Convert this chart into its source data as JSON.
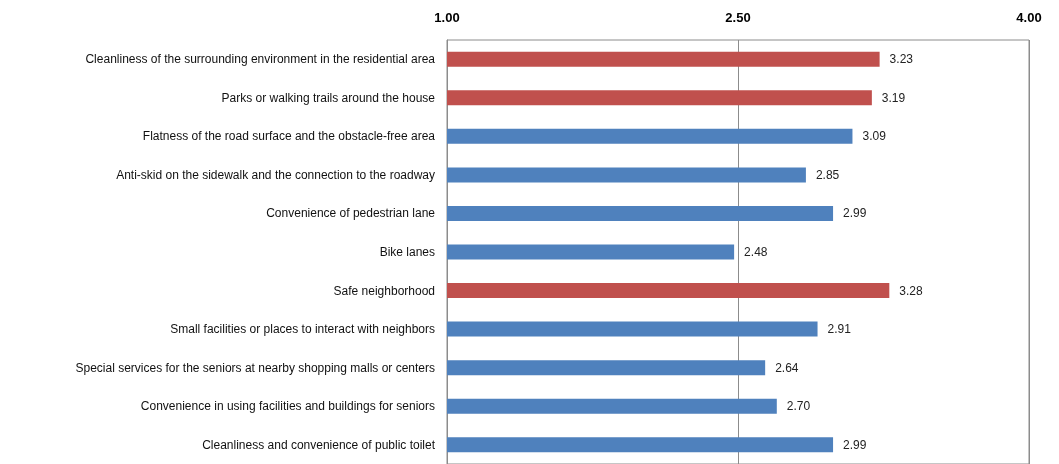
{
  "chart_data": {
    "type": "bar",
    "orientation": "horizontal",
    "categories": [
      "Cleanliness of the surrounding environment in the residential area",
      "Parks or walking trails around the house",
      "Flatness of the road surface and the obstacle-free area",
      "Anti-skid on the sidewalk and the connection to the roadway",
      "Convenience of pedestrian lane",
      "Bike lanes",
      "Safe neighborhood",
      "Small facilities or places to interact with neighbors",
      "Special services for the seniors at nearby shopping malls or centers",
      "Convenience in using facilities and buildings for seniors",
      "Cleanliness and convenience of public toilet"
    ],
    "values": [
      3.23,
      3.19,
      3.09,
      2.85,
      2.99,
      2.48,
      3.28,
      2.91,
      2.64,
      2.7,
      2.99
    ],
    "value_labels": [
      "3.23",
      "3.19",
      "3.09",
      "2.85",
      "2.99",
      "2.48",
      "3.28",
      "2.91",
      "2.64",
      "2.70",
      "2.99"
    ],
    "colors": [
      "#c0504d",
      "#c0504d",
      "#4f81bd",
      "#4f81bd",
      "#4f81bd",
      "#4f81bd",
      "#c0504d",
      "#4f81bd",
      "#4f81bd",
      "#4f81bd",
      "#4f81bd"
    ],
    "xlim": [
      1,
      4
    ],
    "xticks": [
      {
        "value": 1,
        "label": "1.00"
      },
      {
        "value": 2.5,
        "label": "2.50"
      },
      {
        "value": 4,
        "label": "4.00"
      }
    ],
    "grid": "x"
  }
}
